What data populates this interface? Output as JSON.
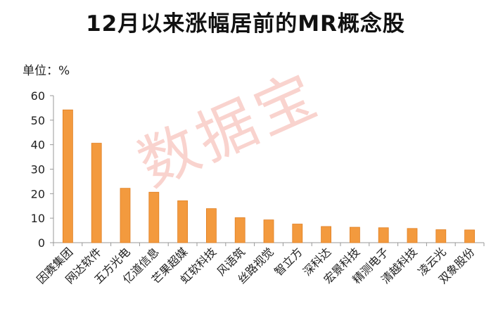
{
  "title": "12月以来涨幅居前的MR概念股",
  "unit_label": "单位：%",
  "watermark": "数据宝",
  "colors": {
    "bar": "#f39a3e",
    "bar_edge": "#e07f22",
    "axis": "#999999",
    "text": "#222222"
  },
  "chart_data": {
    "type": "bar",
    "title": "12月以来涨幅居前的MR概念股",
    "ylabel": "单位：%",
    "xlabel": "",
    "ylim": [
      0,
      60
    ],
    "yticks": [
      0,
      10,
      20,
      30,
      40,
      50,
      60
    ],
    "grid": false,
    "categories": [
      "因赛集团",
      "网达软件",
      "五方光电",
      "亿道信息",
      "芒果超媒",
      "虹软科技",
      "风语筑",
      "丝路视觉",
      "智立方",
      "深科达",
      "宏景科技",
      "精测电子",
      "清越科技",
      "凌云光",
      "双象股份"
    ],
    "values": [
      54.2,
      40.6,
      22.2,
      20.6,
      17.1,
      13.9,
      10.2,
      9.3,
      7.6,
      6.6,
      6.3,
      6.1,
      5.8,
      5.3,
      5.2
    ]
  }
}
